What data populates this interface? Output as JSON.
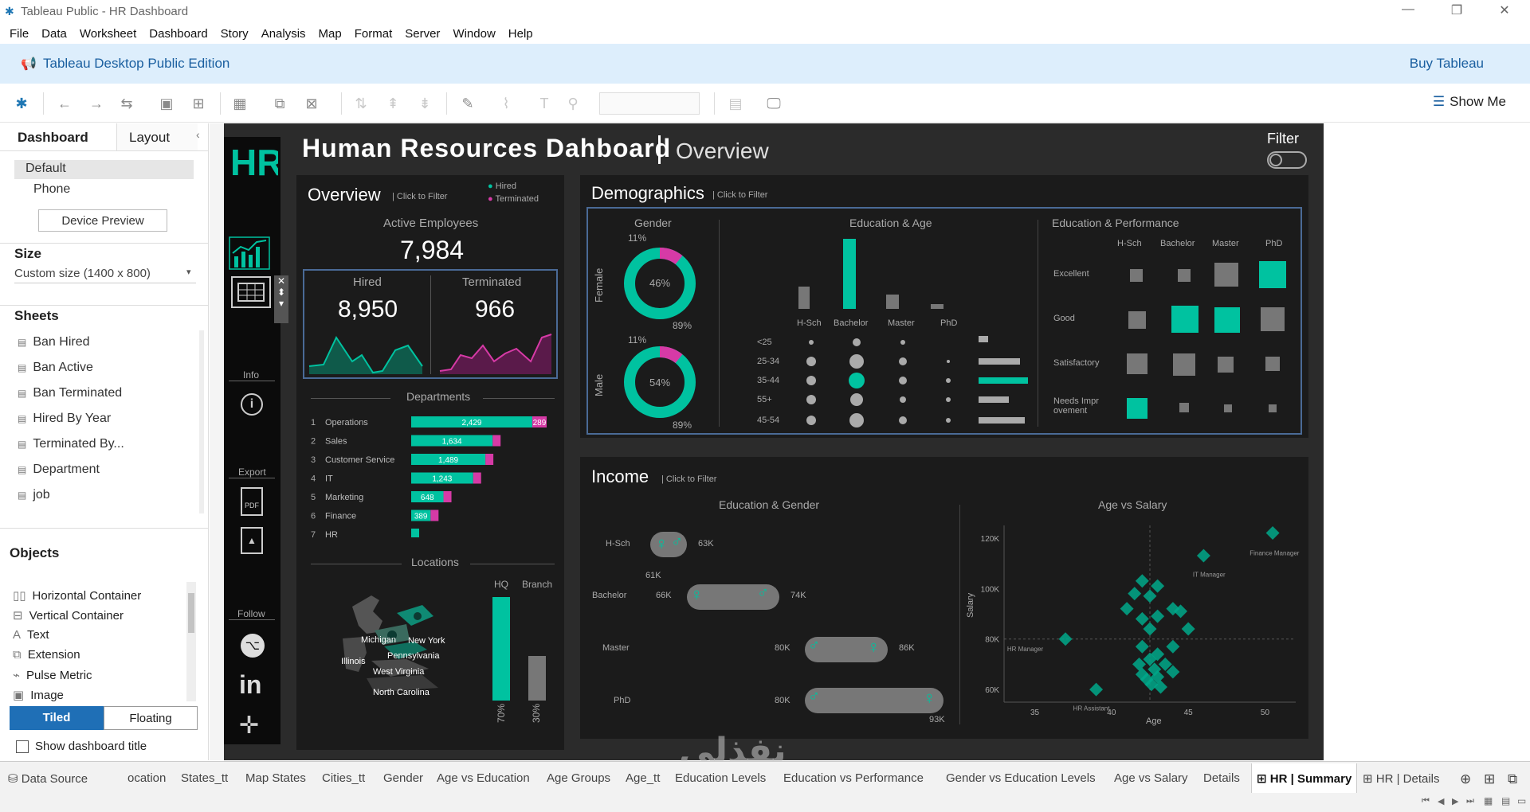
{
  "window": {
    "title": "Tableau Public - HR Dashboard",
    "logo": "tableau-logo-icon"
  },
  "menu": [
    "File",
    "Data",
    "Worksheet",
    "Dashboard",
    "Story",
    "Analysis",
    "Map",
    "Format",
    "Server",
    "Window",
    "Help"
  ],
  "banner": {
    "edition": "Tableau Desktop Public Edition",
    "buy": "Buy Tableau"
  },
  "toolbar": {
    "show_me": "Show Me"
  },
  "left": {
    "tab_dashboard": "Dashboard",
    "tab_layout": "Layout",
    "device_default": "Default",
    "device_phone": "Phone",
    "device_preview": "Device Preview",
    "size_label": "Size",
    "size_value": "Custom size (1400 x 800)",
    "sheets_label": "Sheets",
    "sheets": [
      "Ban Hired",
      "Ban Active",
      "Ban Terminated",
      "Hired By Year",
      "Terminated By...",
      "Department",
      "job"
    ],
    "objects_label": "Objects",
    "objects": [
      "Horizontal Container",
      "Vertical Container",
      "Text",
      "Extension",
      "Pulse Metric",
      "Image"
    ],
    "tiled": "Tiled",
    "floating": "Floating",
    "show_title": "Show dashboard title"
  },
  "dashboard": {
    "title": "Human Resources Dahboard",
    "subtitle": "Overview",
    "filter": "Filter",
    "logo": "HR",
    "side_info": "Info",
    "side_export": "Export",
    "side_follow": "Follow",
    "overview": {
      "title": "Overview",
      "hint": "| Click to Filter",
      "legend_hired": "Hired",
      "legend_terminated": "Terminated",
      "active_label": "Active Employees",
      "active_value": "7,984",
      "hired_label": "Hired",
      "hired_value": "8,950",
      "term_label": "Terminated",
      "term_value": "966",
      "departments_label": "Departments",
      "locations_label": "Locations",
      "hq": "HQ",
      "branch": "Branch",
      "hq_pct": "70%",
      "branch_pct": "30%",
      "states": [
        "Michigan",
        "New York",
        "Illinois",
        "Pennsylvania",
        "West Virginia",
        "North Carolina"
      ]
    },
    "demographics": {
      "title": "Demographics",
      "hint": "| Click to Filter",
      "gender": "Gender",
      "female": "Female",
      "male": "Male",
      "female_top": "11%",
      "female_center": "46%",
      "female_bottom": "89%",
      "male_top": "11%",
      "male_center": "54%",
      "male_bottom": "89%",
      "edu_age": "Education & Age",
      "edu_perf": "Education & Performance",
      "edu_levels": [
        "H-Sch",
        "Bachelor",
        "Master",
        "PhD"
      ],
      "age_groups": [
        "<25",
        "25-34",
        "35-44",
        "55+",
        "45-54"
      ],
      "perf_levels": [
        "Excellent",
        "Good",
        "Satisfactory",
        "Needs Impr ovement"
      ]
    },
    "income": {
      "title": "Income",
      "hint": "| Click to Filter",
      "edu_gender": "Education & Gender",
      "age_salary": "Age vs Salary",
      "rows": [
        {
          "edu": "H-Sch",
          "left": "61K",
          "right": "63K"
        },
        {
          "edu": "Bachelor",
          "left": "66K",
          "right": "74K"
        },
        {
          "edu": "Master",
          "left": "80K",
          "right": "86K"
        },
        {
          "edu": "PhD",
          "left": "80K",
          "right": "93K"
        }
      ],
      "salary_label": "Salary",
      "age_label": "Age",
      "yticks": [
        "120K",
        "100K",
        "80K",
        "60K"
      ],
      "xticks": [
        "35",
        "40",
        "45",
        "50"
      ],
      "point_labels": [
        "Finance Manager",
        "IT Manager",
        "HR Manager",
        "HR Assistant"
      ]
    }
  },
  "chart_data": [
    {
      "type": "bar",
      "title": "Departments",
      "categories": [
        "Operations",
        "Sales",
        "Customer Service",
        "IT",
        "Marketing",
        "Finance",
        "HR"
      ],
      "series": [
        {
          "name": "Hired",
          "values": [
            2429,
            1634,
            1489,
            1243,
            648,
            389,
            null
          ]
        },
        {
          "name": "Terminated",
          "values": [
            289,
            null,
            null,
            null,
            null,
            null,
            null
          ]
        }
      ],
      "ranks": [
        "1",
        "2",
        "3",
        "4",
        "5",
        "6",
        "7"
      ]
    },
    {
      "type": "bar",
      "title": "Locations",
      "categories": [
        "HQ",
        "Branch"
      ],
      "values": [
        70,
        30
      ]
    },
    {
      "type": "scatter",
      "title": "Age vs Salary",
      "xlabel": "Age",
      "ylabel": "Salary",
      "xlim": [
        33,
        52
      ],
      "ylim": [
        55000,
        125000
      ]
    }
  ],
  "tabs": [
    "Data Source",
    "ocation",
    "States_tt",
    "Map States",
    "Cities_tt",
    "Gender",
    "Age vs Education",
    "Age Groups",
    "Age_tt",
    "Education Levels",
    "Education vs Performance",
    "Gender vs Education Levels",
    "Age vs Salary",
    "Details",
    "HR | Summary",
    "HR | Details"
  ],
  "colors": {
    "accent": "#00c2a0",
    "magenta": "#d63aa6",
    "bg": "#2b2b2b",
    "panel": "#1b1b1b",
    "banner": "#ddeefc",
    "link": "#1a5fa0"
  }
}
